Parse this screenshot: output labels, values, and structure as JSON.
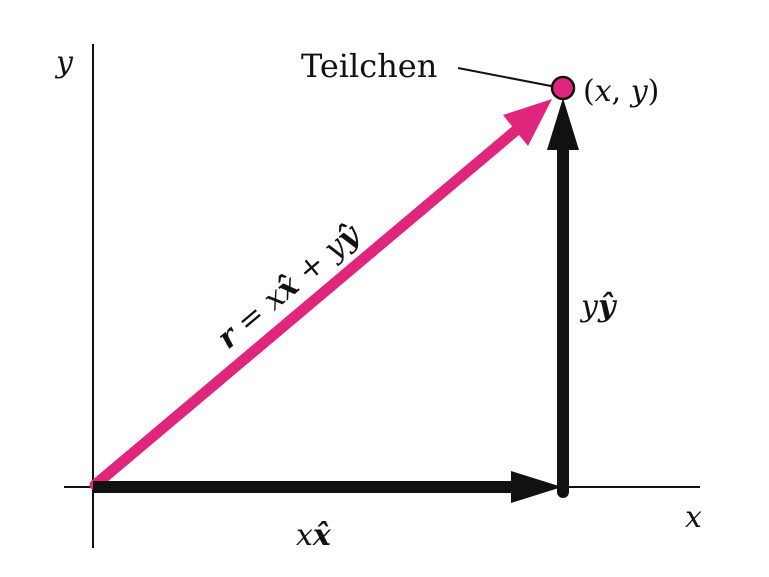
{
  "axes": {
    "x_label": "x",
    "y_label": "y"
  },
  "particle": {
    "label": "Teilchen",
    "coords_open": "(",
    "coords_x": "x",
    "coords_sep": ", ",
    "coords_y": "y",
    "coords_close": ")"
  },
  "vectors": {
    "position": {
      "r": "r",
      "eq": " = ",
      "x": "x",
      "xhat": "x̂",
      "plus": " + ",
      "y": "y",
      "yhat": "ŷ"
    },
    "x_component": {
      "coef": "x",
      "unit": "x̂"
    },
    "y_component": {
      "coef": "y",
      "unit": "ŷ"
    }
  },
  "colors": {
    "position_vector": "#e0257c",
    "component_vectors": "#111111",
    "axes": "#111111",
    "particle_fill": "#e0257c"
  }
}
